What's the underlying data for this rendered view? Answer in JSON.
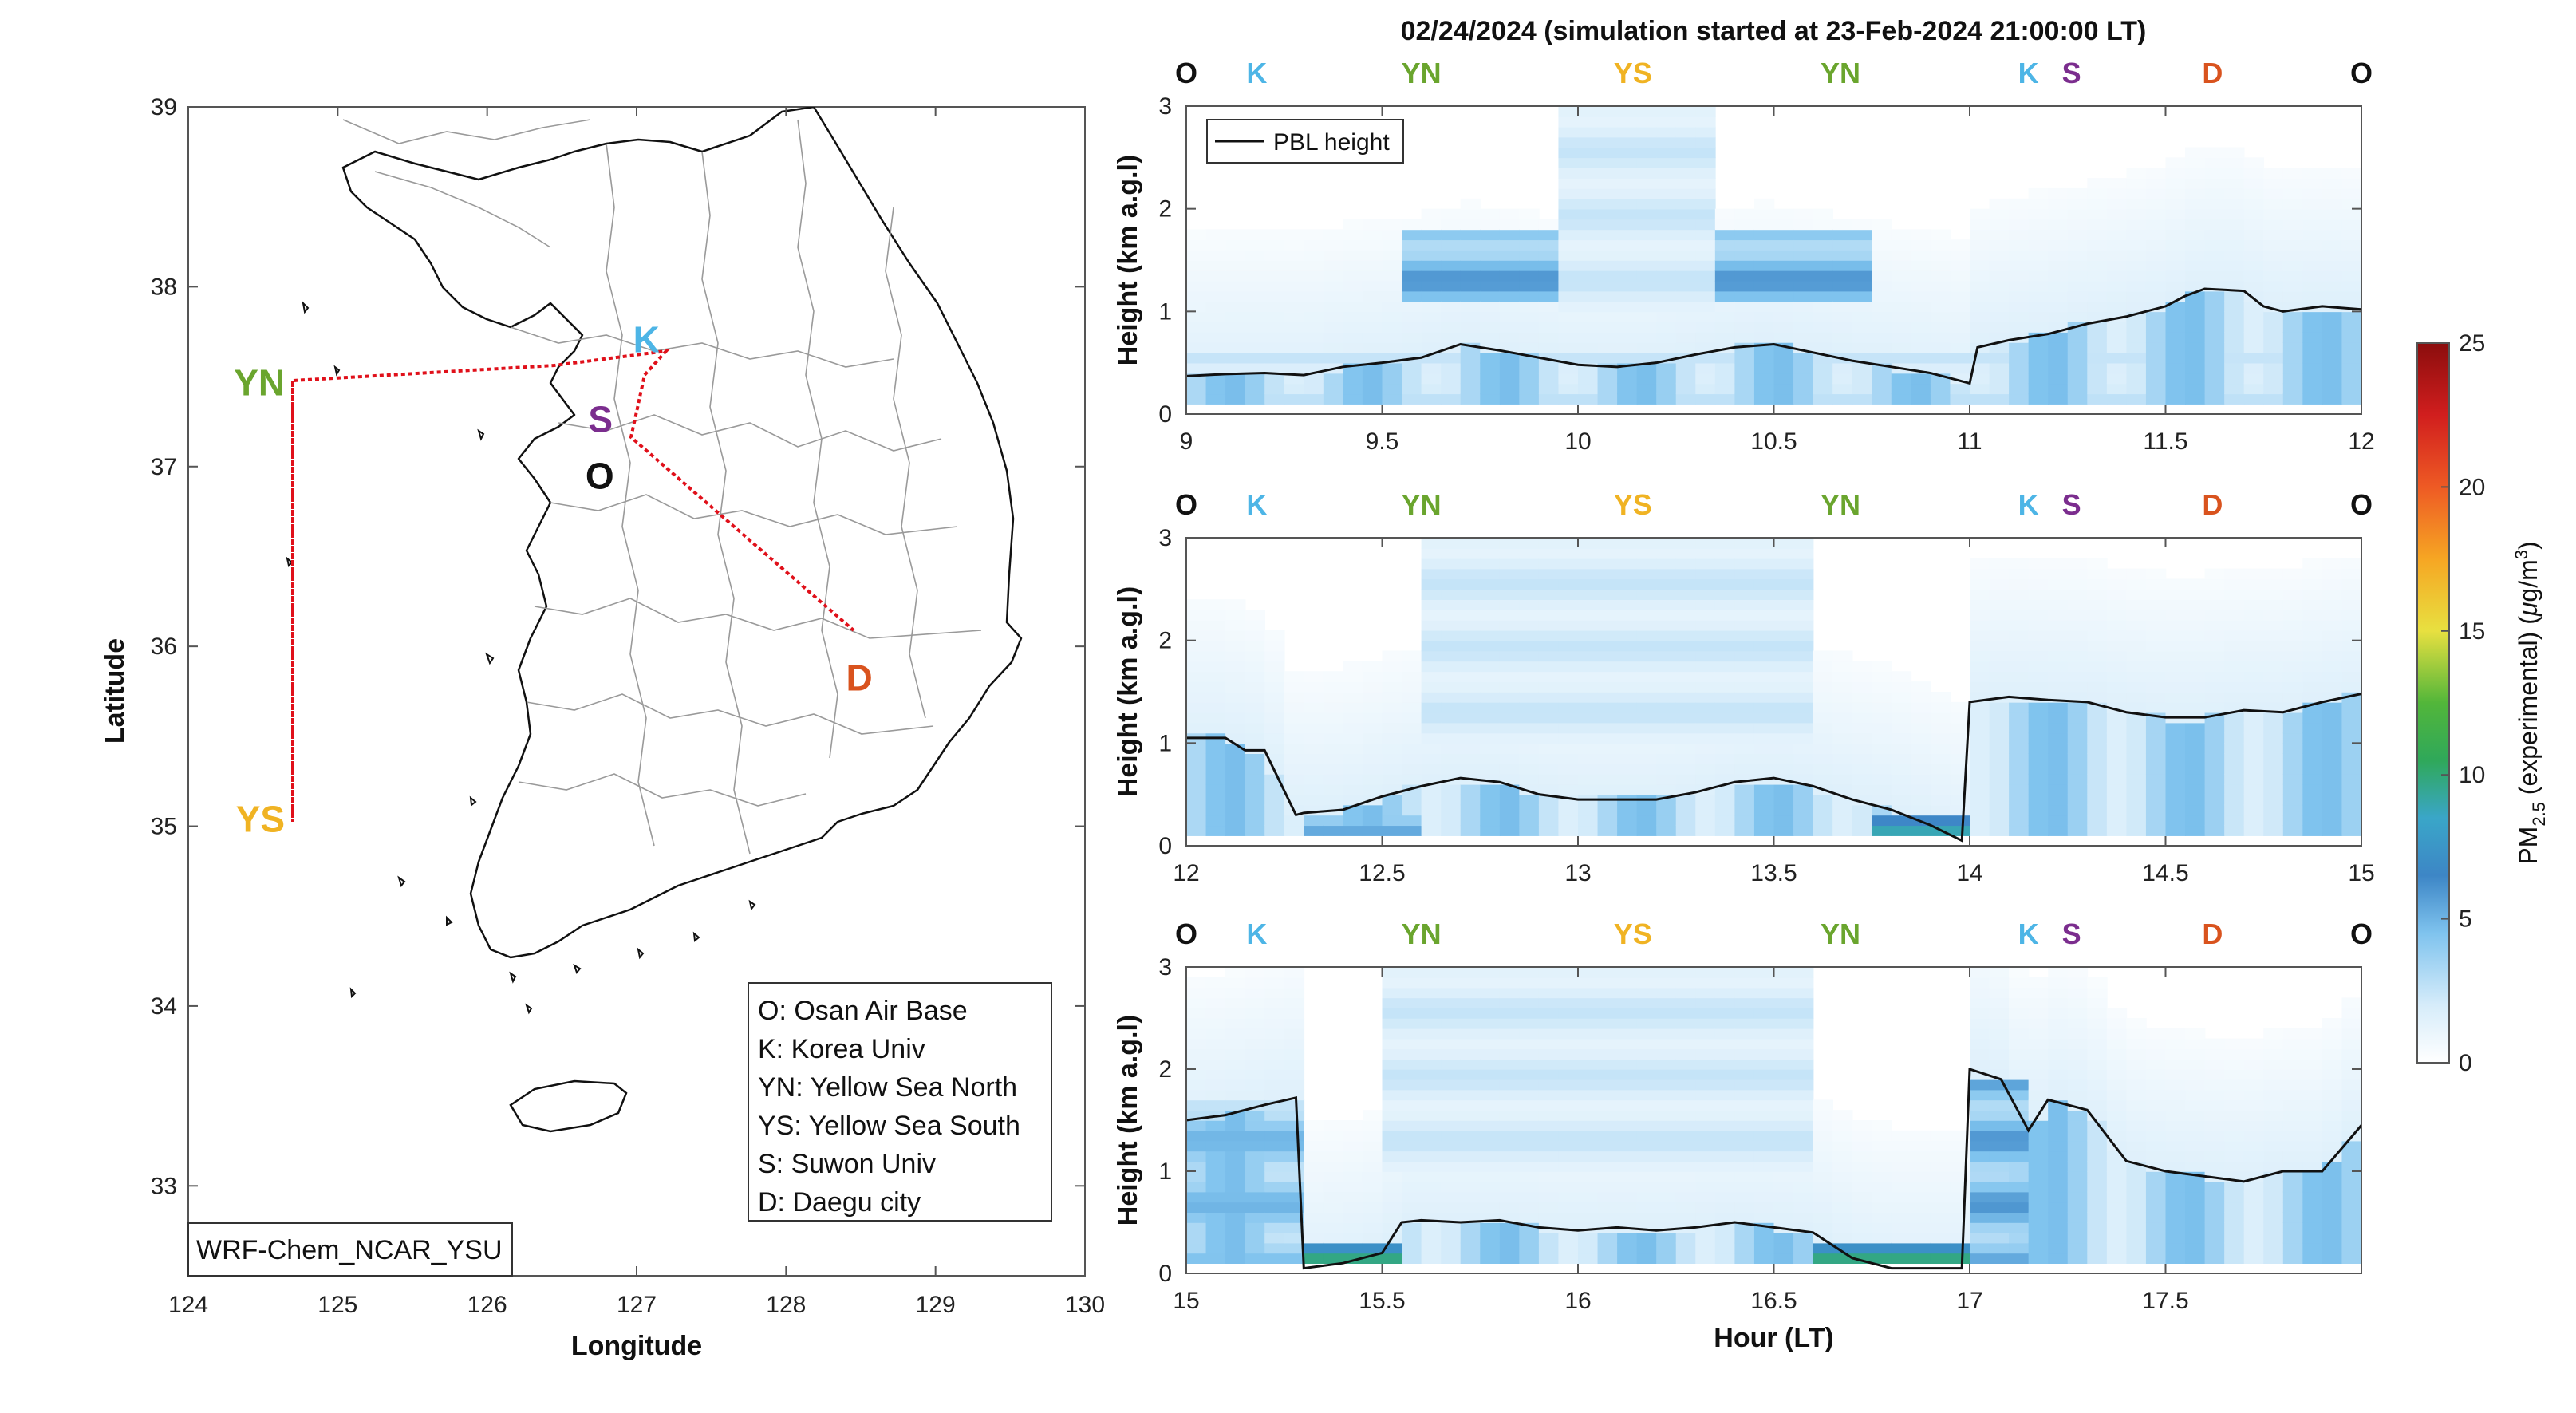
{
  "figure": {
    "title": "02/24/2024 (simulation started at 23-Feb-2024 21:00:00 LT)"
  },
  "map": {
    "xlabel": "Longitude",
    "ylabel": "Latitude",
    "xticks": [
      "124",
      "125",
      "126",
      "127",
      "128",
      "129",
      "130"
    ],
    "yticks": [
      "33",
      "34",
      "35",
      "36",
      "37",
      "38",
      "39"
    ],
    "xlim": [
      124,
      130
    ],
    "ylim": [
      32.5,
      39
    ],
    "model_label": "WRF-Chem_NCAR_YSU",
    "legend": [
      "O: Osan Air Base",
      "K: Korea Univ",
      "YN: Yellow Sea North",
      "YS: Yellow Sea South",
      "S: Suwon Univ",
      "D: Daegu city"
    ],
    "sites": [
      {
        "code": "YN",
        "lon": 124.7,
        "lat": 37.45,
        "color": "#6aa52e"
      },
      {
        "code": "YS",
        "lon": 124.7,
        "lat": 35.05,
        "color": "#f0b323"
      },
      {
        "code": "K",
        "lon": 127.25,
        "lat": 37.6,
        "color": "#4db5e6"
      },
      {
        "code": "S",
        "lon": 127.0,
        "lat": 37.28,
        "color": "#7b2d8e"
      },
      {
        "code": "O",
        "lon": 127.03,
        "lat": 37.09,
        "color": "#111111"
      },
      {
        "code": "D",
        "lon": 128.6,
        "lat": 35.87,
        "color": "#d9531e"
      }
    ]
  },
  "site_colors": {
    "O": "#111111",
    "K": "#4db5e6",
    "YN": "#6aa52e",
    "YS": "#f0b323",
    "S": "#7b2d8e",
    "D": "#d9531e"
  },
  "colorbar": {
    "label": "PM2.5 (experimental) (μg/m3)",
    "ticks": [
      "0",
      "5",
      "10",
      "15",
      "20",
      "25"
    ],
    "range": [
      0,
      25
    ]
  },
  "chart_data": [
    {
      "type": "heatmap",
      "ylabel": "Height (km a.g.l)",
      "xlabel": "",
      "xlim": [
        9,
        12
      ],
      "ylim": [
        0,
        3
      ],
      "xticks": [
        "9",
        "9.5",
        "10",
        "10.5",
        "11",
        "11.5",
        "12"
      ],
      "yticks": [
        "0",
        "1",
        "2",
        "3"
      ],
      "site_markers": [
        {
          "code": "O",
          "x": 9.0
        },
        {
          "code": "K",
          "x": 9.18
        },
        {
          "code": "YN",
          "x": 9.6
        },
        {
          "code": "YS",
          "x": 10.14
        },
        {
          "code": "YN",
          "x": 10.67
        },
        {
          "code": "K",
          "x": 11.15
        },
        {
          "code": "S",
          "x": 11.26
        },
        {
          "code": "D",
          "x": 11.62
        },
        {
          "code": "O",
          "x": 12.0
        }
      ],
      "legend": [
        "PBL height"
      ],
      "pbl": {
        "x": [
          9.0,
          9.1,
          9.2,
          9.3,
          9.4,
          9.5,
          9.6,
          9.7,
          9.8,
          9.9,
          10.0,
          10.1,
          10.2,
          10.3,
          10.4,
          10.5,
          10.6,
          10.7,
          10.8,
          10.9,
          10.95,
          11.0,
          11.02,
          11.1,
          11.2,
          11.3,
          11.4,
          11.5,
          11.55,
          11.6,
          11.7,
          11.75,
          11.8,
          11.9,
          12.0
        ],
        "y": [
          0.37,
          0.39,
          0.4,
          0.38,
          0.46,
          0.5,
          0.55,
          0.68,
          0.62,
          0.55,
          0.48,
          0.46,
          0.5,
          0.58,
          0.65,
          0.68,
          0.6,
          0.52,
          0.46,
          0.4,
          0.35,
          0.3,
          0.65,
          0.72,
          0.78,
          0.88,
          0.95,
          1.05,
          1.15,
          1.22,
          1.2,
          1.05,
          1.0,
          1.05,
          1.02
        ]
      },
      "features": [
        {
          "x0": 9.55,
          "x1": 9.95,
          "y0": 1.1,
          "y1": 1.8,
          "v": 6
        },
        {
          "x0": 10.35,
          "x1": 10.75,
          "y0": 1.1,
          "y1": 1.8,
          "v": 6
        },
        {
          "x0": 9.95,
          "x1": 10.35,
          "y0": 1.0,
          "y1": 3.0,
          "v": 2.5
        },
        {
          "x0": 9.0,
          "x1": 12.0,
          "y0": 0.1,
          "y1": 0.6,
          "v": 3
        }
      ]
    },
    {
      "type": "heatmap",
      "ylabel": "Height (km a.g.l)",
      "xlabel": "",
      "xlim": [
        12,
        15
      ],
      "ylim": [
        0,
        3
      ],
      "xticks": [
        "12",
        "12.5",
        "13",
        "13.5",
        "14",
        "14.5",
        "15"
      ],
      "yticks": [
        "0",
        "1",
        "2",
        "3"
      ],
      "site_markers": [
        {
          "code": "O",
          "x": 12.0
        },
        {
          "code": "K",
          "x": 12.18
        },
        {
          "code": "YN",
          "x": 12.6
        },
        {
          "code": "YS",
          "x": 13.14
        },
        {
          "code": "YN",
          "x": 13.67
        },
        {
          "code": "K",
          "x": 14.15
        },
        {
          "code": "S",
          "x": 14.26
        },
        {
          "code": "D",
          "x": 14.62
        },
        {
          "code": "O",
          "x": 15.0
        }
      ],
      "pbl": {
        "x": [
          12.0,
          12.1,
          12.15,
          12.2,
          12.28,
          12.3,
          12.4,
          12.5,
          12.6,
          12.7,
          12.8,
          12.9,
          13.0,
          13.1,
          13.2,
          13.3,
          13.4,
          13.5,
          13.6,
          13.7,
          13.8,
          13.9,
          13.98,
          14.0,
          14.1,
          14.2,
          14.3,
          14.4,
          14.5,
          14.6,
          14.7,
          14.8,
          14.9,
          15.0
        ],
        "y": [
          1.05,
          1.05,
          0.93,
          0.93,
          0.3,
          0.32,
          0.35,
          0.48,
          0.58,
          0.66,
          0.62,
          0.5,
          0.45,
          0.45,
          0.45,
          0.52,
          0.62,
          0.66,
          0.58,
          0.45,
          0.35,
          0.2,
          0.05,
          1.4,
          1.45,
          1.42,
          1.4,
          1.3,
          1.25,
          1.25,
          1.32,
          1.3,
          1.4,
          1.48
        ]
      },
      "features": [
        {
          "x0": 12.6,
          "x1": 13.6,
          "y0": 1.0,
          "y1": 3.0,
          "v": 2.5
        },
        {
          "x0": 12.3,
          "x1": 12.6,
          "y0": 0.1,
          "y1": 0.3,
          "v": 6
        },
        {
          "x0": 13.75,
          "x1": 13.98,
          "y0": 0.1,
          "y1": 0.3,
          "v": 10
        }
      ]
    },
    {
      "type": "heatmap",
      "ylabel": "Height (km a.g.l)",
      "xlabel": "Hour (LT)",
      "xlim": [
        15,
        18
      ],
      "ylim": [
        0,
        3
      ],
      "xticks": [
        "15",
        "15.5",
        "16",
        "16.5",
        "17",
        "17.5"
      ],
      "yticks": [
        "0",
        "1",
        "2",
        "3"
      ],
      "site_markers": [
        {
          "code": "O",
          "x": 15.0
        },
        {
          "code": "K",
          "x": 15.18
        },
        {
          "code": "YN",
          "x": 15.6
        },
        {
          "code": "YS",
          "x": 16.14
        },
        {
          "code": "YN",
          "x": 16.67
        },
        {
          "code": "K",
          "x": 17.15
        },
        {
          "code": "S",
          "x": 17.26
        },
        {
          "code": "D",
          "x": 17.62
        },
        {
          "code": "O",
          "x": 18.0
        }
      ],
      "pbl": {
        "x": [
          15.0,
          15.1,
          15.2,
          15.28,
          15.3,
          15.4,
          15.5,
          15.55,
          15.6,
          15.7,
          15.8,
          15.9,
          16.0,
          16.1,
          16.2,
          16.3,
          16.4,
          16.5,
          16.6,
          16.7,
          16.8,
          16.9,
          16.98,
          17.0,
          17.08,
          17.15,
          17.2,
          17.3,
          17.4,
          17.5,
          17.6,
          17.7,
          17.8,
          17.9,
          18.0
        ],
        "y": [
          1.5,
          1.55,
          1.65,
          1.72,
          0.05,
          0.1,
          0.2,
          0.5,
          0.52,
          0.5,
          0.52,
          0.45,
          0.42,
          0.45,
          0.42,
          0.45,
          0.5,
          0.45,
          0.4,
          0.15,
          0.05,
          0.05,
          0.05,
          2.0,
          1.9,
          1.4,
          1.7,
          1.6,
          1.1,
          1.0,
          0.95,
          0.9,
          1.0,
          1.0,
          1.45
        ]
      },
      "features": [
        {
          "x0": 15.5,
          "x1": 16.6,
          "y0": 1.0,
          "y1": 3.0,
          "v": 2.5
        },
        {
          "x0": 15.0,
          "x1": 15.28,
          "y0": 0.1,
          "y1": 1.7,
          "v": 5
        },
        {
          "x0": 15.3,
          "x1": 15.55,
          "y0": 0.1,
          "y1": 0.25,
          "v": 11
        },
        {
          "x0": 16.6,
          "x1": 16.98,
          "y0": 0.1,
          "y1": 0.25,
          "v": 11
        },
        {
          "x0": 17.0,
          "x1": 17.15,
          "y0": 0.1,
          "y1": 1.9,
          "v": 6
        }
      ]
    }
  ]
}
